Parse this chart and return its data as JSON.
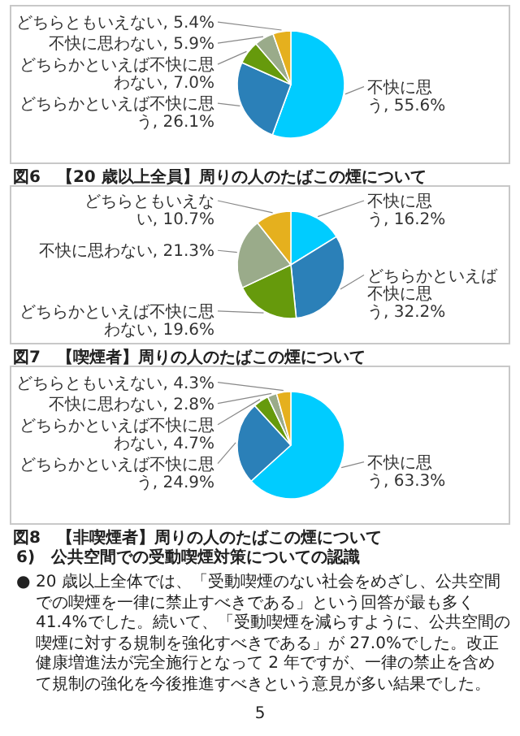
{
  "chart_data": [
    {
      "type": "pie",
      "title": "図6　【20 歳以上全員】周りの人のたばこの煙について",
      "categories": [
        "不快に思う",
        "どちらかといえば不快に思う",
        "どちらかといえば不快に思わない",
        "不快に思わない",
        "どちらともいえない"
      ],
      "values": [
        55.6,
        26.1,
        7.0,
        5.9,
        5.4
      ],
      "value_labels": [
        "55.6%",
        "26.1%",
        "7.0%",
        "5.9%",
        "5.4%"
      ],
      "colors": [
        "#00ccff",
        "#2b80b8",
        "#669a0c",
        "#9aab8a",
        "#e5b01e"
      ]
    },
    {
      "type": "pie",
      "title": "図7　【喫煙者】周りの人のたばこの煙について",
      "categories": [
        "不快に思う",
        "どちらかといえば不快に思う",
        "どちらかといえば不快に思わない",
        "不快に思わない",
        "どちらともいえない"
      ],
      "values": [
        16.2,
        32.2,
        19.6,
        21.3,
        10.7
      ],
      "value_labels": [
        "16.2%",
        "32.2%",
        "19.6%",
        "21.3%",
        "10.7%"
      ],
      "colors": [
        "#00ccff",
        "#2b80b8",
        "#669a0c",
        "#9aab8a",
        "#e5b01e"
      ]
    },
    {
      "type": "pie",
      "title": "図8　【非喫煙者】周りの人のたばこの煙について",
      "categories": [
        "不快に思う",
        "どちらかといえば不快に思う",
        "どちらかといえば不快に思わない",
        "不快に思わない",
        "どちらともいえない"
      ],
      "values": [
        63.3,
        24.9,
        4.7,
        2.8,
        4.3
      ],
      "value_labels": [
        "63.3%",
        "24.9%",
        "4.7%",
        "2.8%",
        "4.3%"
      ],
      "colors": [
        "#00ccff",
        "#2b80b8",
        "#669a0c",
        "#9aab8a",
        "#e5b01e"
      ]
    },
    {
      "type": "other",
      "title": "6)　公共空間での受動喫煙対策についての認識",
      "annotations": [
        "●",
        "20 歳以上全体では、「受動喫煙のない社会をめざし、公共空間での喫煙を一律に禁止すべきである」という回答が最も多く 41.4%でした。続いて、「受動喫煙を減らすように、公共空間の喫煙に対する規制を強化すべきである」が 27.0%でした。改正健康増進法が完全施行となって 2 年ですが、一律の禁止を含めて規制の強化を今後推進すべきという意見が多い結果でした。",
        "5"
      ]
    }
  ]
}
